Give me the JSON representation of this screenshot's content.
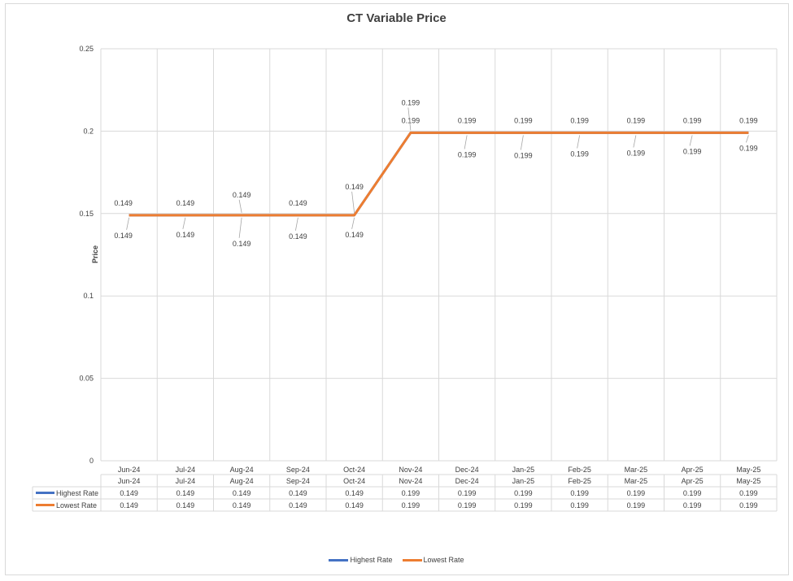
{
  "chart_data": {
    "type": "line",
    "title": "CT Variable Price",
    "ylabel": "Price",
    "xlabel": "",
    "ylim": [
      0,
      0.25
    ],
    "yticks": [
      "0",
      "0.05",
      "0.1",
      "0.15",
      "0.2",
      "0.25"
    ],
    "categories": [
      "Jun-24",
      "Jul-24",
      "Aug-24",
      "Sep-24",
      "Oct-24",
      "Nov-24",
      "Dec-24",
      "Jan-25",
      "Feb-25",
      "Mar-25",
      "Apr-25",
      "May-25"
    ],
    "series": [
      {
        "name": "Highest Rate",
        "color": "#4472c4",
        "values": [
          0.149,
          0.149,
          0.149,
          0.149,
          0.149,
          0.199,
          0.199,
          0.199,
          0.199,
          0.199,
          0.199,
          0.199
        ]
      },
      {
        "name": "Lowest Rate",
        "color": "#ed7d31",
        "values": [
          0.149,
          0.149,
          0.149,
          0.149,
          0.149,
          0.199,
          0.199,
          0.199,
          0.199,
          0.199,
          0.199,
          0.199
        ]
      }
    ],
    "grid": true,
    "legend": "bottom",
    "data_table": true
  }
}
